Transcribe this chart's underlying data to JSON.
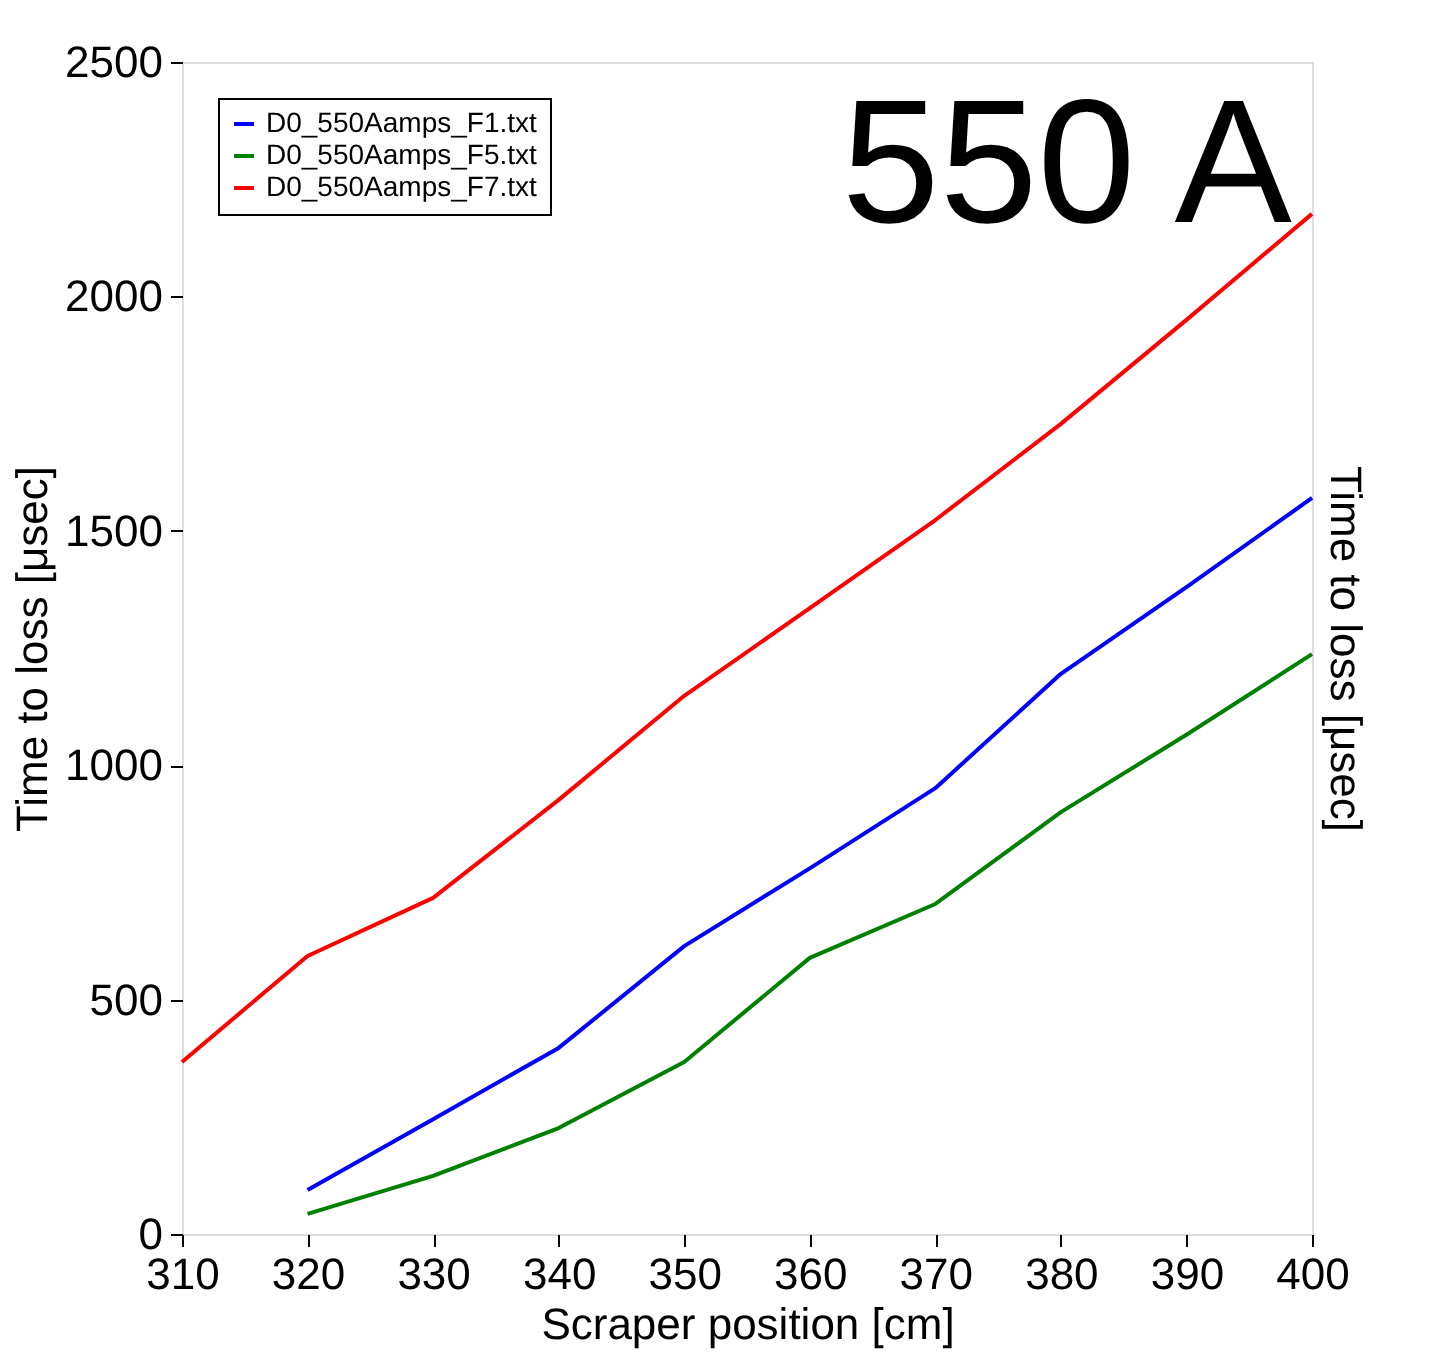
{
  "chart_data": {
    "type": "line",
    "xlabel": "Scraper position [cm]",
    "ylabel": "Time to loss [μsec]",
    "y2label": "Time to loss [μsec]",
    "annotations": [
      "550 A"
    ],
    "series": [
      {
        "name": "D0_550Aamps_F1.txt",
        "color": "#0000ff",
        "x": [
          320,
          330,
          340,
          350,
          360,
          370,
          380,
          390,
          400
        ],
        "values": [
          94,
          245,
          397,
          614,
          780,
          951,
          1195,
          1380,
          1570
        ]
      },
      {
        "name": "D0_550Aamps_F5.txt",
        "color": "#008000",
        "x": [
          320,
          330,
          340,
          350,
          360,
          370,
          380,
          390,
          400
        ],
        "values": [
          43,
          124,
          226,
          367,
          589,
          704,
          900,
          1065,
          1237
        ]
      },
      {
        "name": "D0_550Aamps_F7.txt",
        "color": "#ff0000",
        "x": [
          310,
          320,
          330,
          340,
          350,
          360,
          370,
          380,
          390,
          400
        ],
        "values": [
          367,
          593,
          717,
          926,
          1148,
          1335,
          1523,
          1728,
          1950,
          2176
        ]
      }
    ],
    "xlim": [
      310,
      400
    ],
    "xticks": [
      310,
      320,
      330,
      340,
      350,
      360,
      370,
      380,
      390,
      400
    ],
    "ylim": [
      0,
      2500
    ],
    "yticks": [
      0,
      500,
      1000,
      1500,
      2000,
      2500
    ],
    "grid": false,
    "legend": "top left",
    "marker": "none",
    "line_style": "solid"
  }
}
